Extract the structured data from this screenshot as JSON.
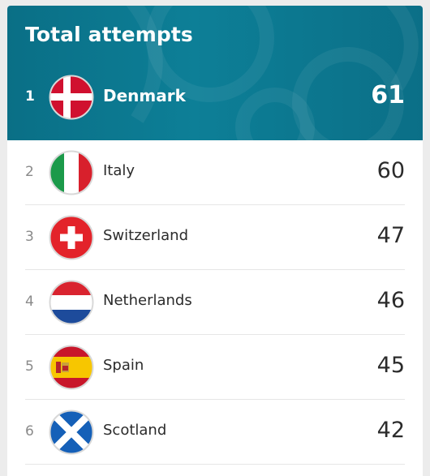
{
  "header": {
    "title": "Total attempts",
    "accent_color": "#0b7a92"
  },
  "leader": {
    "rank": "1",
    "country": "Denmark",
    "value": "61",
    "flag_icon": "denmark-flag-icon"
  },
  "rows": [
    {
      "rank": "2",
      "country": "Italy",
      "value": "60",
      "flag_icon": "italy-flag-icon"
    },
    {
      "rank": "3",
      "country": "Switzerland",
      "value": "47",
      "flag_icon": "switzerland-flag-icon"
    },
    {
      "rank": "4",
      "country": "Netherlands",
      "value": "46",
      "flag_icon": "netherlands-flag-icon"
    },
    {
      "rank": "5",
      "country": "Spain",
      "value": "45",
      "flag_icon": "spain-flag-icon"
    },
    {
      "rank": "6",
      "country": "Scotland",
      "value": "42",
      "flag_icon": "scotland-flag-icon"
    }
  ]
}
